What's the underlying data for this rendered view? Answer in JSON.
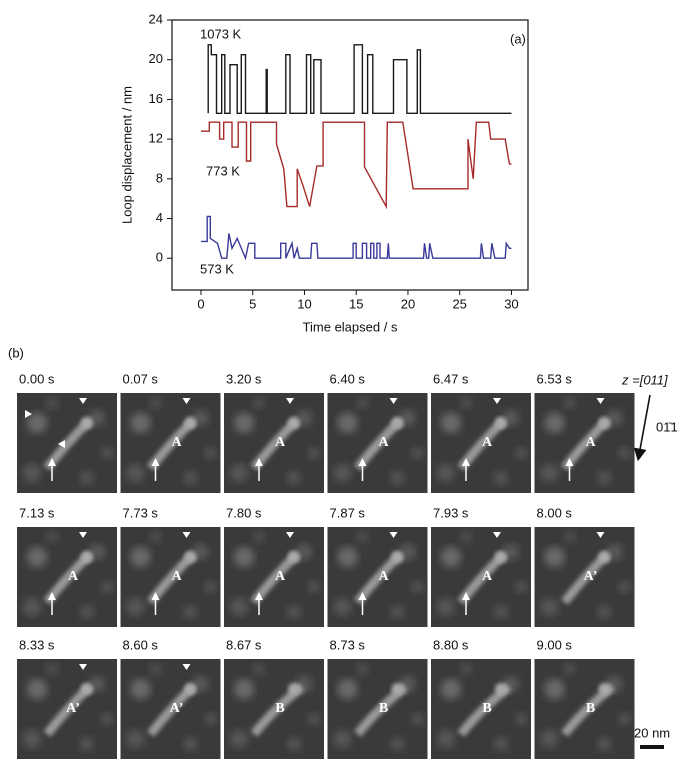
{
  "chart_data": {
    "type": "line",
    "panel_label": "(a)",
    "x_label": "Time elapsed / s",
    "y_label": "Loop displacement / nm",
    "xlim": [
      -2.8,
      31.6
    ],
    "xticks": [
      0,
      5,
      10,
      15,
      20,
      25,
      30
    ],
    "ylim": [
      -3.2,
      24
    ],
    "yticks": [
      0,
      4,
      8,
      12,
      16,
      20,
      24
    ],
    "series": [
      {
        "name": "1073 K",
        "color": "#1a1a1a",
        "x": [
          0.7,
          0.7,
          1.0,
          1.0,
          1.5,
          1.5,
          2.0,
          2.0,
          2.3,
          2.3,
          2.8,
          2.8,
          3.5,
          3.5,
          3.9,
          3.9,
          4.3,
          4.3,
          6.3,
          6.3,
          6.4,
          6.4,
          8.2,
          8.2,
          8.6,
          8.6,
          10.2,
          10.2,
          10.6,
          10.6,
          10.9,
          10.9,
          11.6,
          11.6,
          14.8,
          14.8,
          15.6,
          15.6,
          16.1,
          16.1,
          16.6,
          16.6,
          18.6,
          18.6,
          19.9,
          19.9,
          20.9,
          20.9,
          21.2,
          21.2,
          30
        ],
        "values": [
          14.6,
          21.5,
          21.5,
          20.5,
          20.5,
          14.6,
          14.6,
          20.5,
          20.5,
          14.6,
          14.6,
          19.5,
          19.5,
          14.6,
          14.6,
          20.5,
          20.5,
          14.6,
          14.6,
          19,
          19,
          14.6,
          14.6,
          20.5,
          20.5,
          14.6,
          14.6,
          20.5,
          20.5,
          14.6,
          14.6,
          20,
          20,
          14.6,
          14.6,
          21.5,
          21.5,
          14.6,
          14.6,
          20.5,
          20.5,
          14.6,
          14.6,
          20,
          20,
          14.6,
          14.6,
          21,
          21,
          14.6,
          14.6
        ]
      },
      {
        "name": "773 K",
        "color": "#a52a2a",
        "x": [
          0,
          0.8,
          0.8,
          1.8,
          1.8,
          2.2,
          2.2,
          3.0,
          3.0,
          3.6,
          3.6,
          4.4,
          4.4,
          4.8,
          4.8,
          7.3,
          7.3,
          8.0,
          8.3,
          9.3,
          9.3,
          9.8,
          10.5,
          11.2,
          11.8,
          11.8,
          15.8,
          15.8,
          17.9,
          18.0,
          19.5,
          20.5,
          25.8,
          25.8,
          26.3,
          26.6,
          27.8,
          28,
          29.4,
          29.8,
          30
        ],
        "values": [
          12.8,
          12.8,
          13.7,
          13.7,
          12,
          12,
          13.7,
          13.7,
          11.2,
          11.2,
          13.7,
          13.7,
          9.8,
          9.8,
          13.7,
          13.7,
          11.5,
          9,
          5.2,
          5.2,
          9,
          7.5,
          5.2,
          9.3,
          9.3,
          13.7,
          13.7,
          9.2,
          5.2,
          13.7,
          13.7,
          7,
          7,
          12,
          8,
          13.7,
          13.7,
          12,
          12,
          9.5,
          9.5
        ]
      },
      {
        "name": "573 K",
        "color": "#3a3a9a",
        "x": [
          0,
          0.6,
          0.6,
          0.9,
          0.9,
          1.6,
          2.0,
          2.5,
          2.7,
          3.0,
          3.5,
          4.3,
          4.6,
          5.2,
          5.2,
          7.7,
          7.7,
          8.2,
          8.2,
          8.8,
          9.0,
          9.3,
          9.5,
          10.6,
          10.7,
          11.2,
          11.3,
          14.7,
          14.7,
          15.0,
          15.0,
          15.6,
          15.6,
          16.0,
          16.0,
          16.4,
          16.4,
          16.7,
          16.7,
          17.0,
          17.0,
          17.3,
          17.3,
          18.0,
          18.1,
          18.2,
          21.5,
          21.6,
          21.8,
          22.0,
          22.1,
          22.4,
          27.0,
          27.1,
          27.3,
          28.0,
          28.1,
          28.4,
          29.4,
          29.5,
          29.8,
          30
        ],
        "values": [
          1.7,
          1.7,
          4.2,
          4.2,
          2,
          1.5,
          0,
          0,
          2.5,
          1,
          2,
          0,
          1.5,
          1.5,
          0,
          0,
          1.5,
          1.5,
          0,
          1.5,
          0,
          1,
          0,
          0,
          1.5,
          1.5,
          0,
          0,
          1.5,
          1.5,
          0,
          0,
          1.5,
          1.5,
          0,
          0,
          1.5,
          1.5,
          0,
          0,
          1.5,
          1.5,
          0,
          0,
          1.5,
          0,
          0,
          1.5,
          0,
          0,
          1.5,
          0,
          0,
          1.5,
          0,
          0,
          1.5,
          0,
          0,
          1.5,
          1,
          1
        ]
      }
    ]
  },
  "panel_b": {
    "label": "(b)",
    "zone_axis": "z =[011]",
    "direction": "01̄1",
    "scale_bar": "20 nm",
    "frames": [
      {
        "time": "0.00 s"
      },
      {
        "time": "0.07 s",
        "letter": "A"
      },
      {
        "time": "3.20 s",
        "letter": "A"
      },
      {
        "time": "6.40 s",
        "letter": "A"
      },
      {
        "time": "6.47 s",
        "letter": "A"
      },
      {
        "time": "6.53 s",
        "letter": "A"
      },
      {
        "time": "7.13 s",
        "letter": "A"
      },
      {
        "time": "7.73 s",
        "letter": "A"
      },
      {
        "time": "7.80 s",
        "letter": "A"
      },
      {
        "time": "7.87 s",
        "letter": "A"
      },
      {
        "time": "7.93 s",
        "letter": "A"
      },
      {
        "time": "8.00 s",
        "letter": "A’"
      },
      {
        "time": "8.33 s",
        "letter": "A’"
      },
      {
        "time": "8.60 s",
        "letter": "A’"
      },
      {
        "time": "8.67 s",
        "letter": "B"
      },
      {
        "time": "8.73 s",
        "letter": "B"
      },
      {
        "time": "8.80 s",
        "letter": "B"
      },
      {
        "time": "9.00 s",
        "letter": "B"
      }
    ]
  }
}
